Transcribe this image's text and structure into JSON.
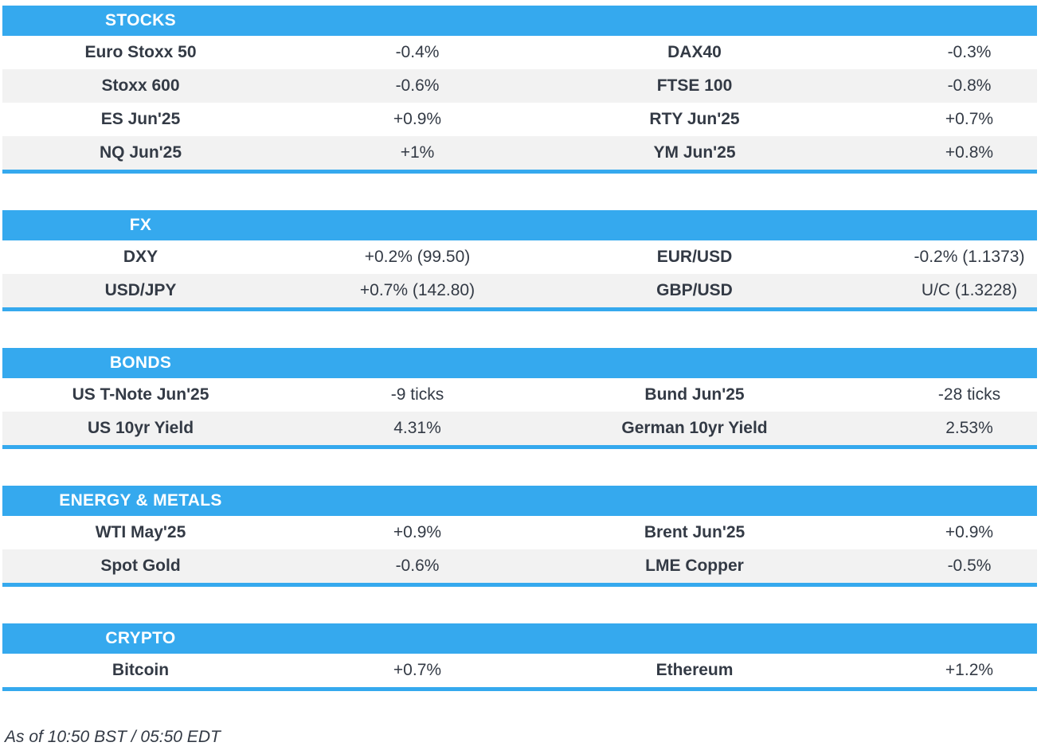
{
  "sections": [
    {
      "title": "STOCKS",
      "rows": [
        {
          "label1": "Euro Stoxx 50",
          "value1": "-0.4%",
          "label2": "DAX40",
          "value2": "-0.3%"
        },
        {
          "label1": "Stoxx 600",
          "value1": "-0.6%",
          "label2": "FTSE 100",
          "value2": "-0.8%"
        },
        {
          "label1": "ES Jun'25",
          "value1": "+0.9%",
          "label2": "RTY Jun'25",
          "value2": "+0.7%"
        },
        {
          "label1": "NQ Jun'25",
          "value1": "+1%",
          "label2": "YM Jun'25",
          "value2": "+0.8%"
        }
      ]
    },
    {
      "title": "FX",
      "rows": [
        {
          "label1": "DXY",
          "value1": "+0.2% (99.50)",
          "label2": "EUR/USD",
          "value2": "-0.2% (1.1373)"
        },
        {
          "label1": "USD/JPY",
          "value1": "+0.7% (142.80)",
          "label2": "GBP/USD",
          "value2": "U/C (1.3228)"
        }
      ]
    },
    {
      "title": "BONDS",
      "rows": [
        {
          "label1": "US T-Note Jun'25",
          "value1": "-9 ticks",
          "label2": "Bund Jun'25",
          "value2": "-28 ticks"
        },
        {
          "label1": "US 10yr Yield",
          "value1": "4.31%",
          "label2": "German 10yr Yield",
          "value2": "2.53%"
        }
      ]
    },
    {
      "title": "ENERGY & METALS",
      "rows": [
        {
          "label1": "WTI May'25",
          "value1": "+0.9%",
          "label2": "Brent Jun'25",
          "value2": "+0.9%"
        },
        {
          "label1": "Spot Gold",
          "value1": "-0.6%",
          "label2": "LME Copper",
          "value2": "-0.5%"
        }
      ]
    },
    {
      "title": "CRYPTO",
      "rows": [
        {
          "label1": "Bitcoin",
          "value1": "+0.7%",
          "label2": "Ethereum",
          "value2": "+1.2%"
        }
      ]
    }
  ],
  "footer": {
    "timestamp": "As of 10:50 BST / 05:50 EDT"
  },
  "colors": {
    "accent_blue": "#35A9EE",
    "row_alt_gray": "#F2F2F2",
    "text": "#333A45",
    "header_text": "#FFFFFF"
  }
}
